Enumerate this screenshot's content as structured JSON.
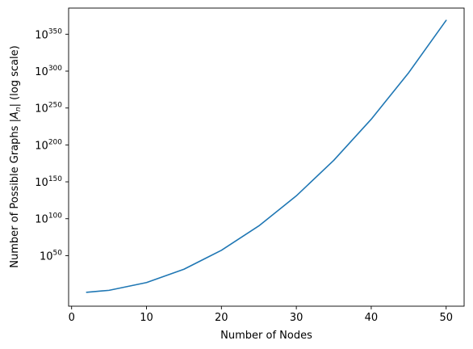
{
  "chart_data": {
    "type": "line",
    "xlabel": "Number of Nodes",
    "ylabel_prefix": "Number of Possible Graphs |",
    "ylabel_var": "A",
    "ylabel_sub": "n",
    "ylabel_suffix": "| (log scale)",
    "xlim": [
      -0.4,
      52.4
    ],
    "ylim_log10": [
      -18.5,
      385.4
    ],
    "yscale": "log",
    "x_ticks": [
      0,
      10,
      20,
      30,
      40,
      50
    ],
    "y_ticks_log10": [
      50,
      100,
      150,
      200,
      250,
      300,
      350
    ],
    "y_tick_base": "10",
    "grid": false,
    "series": [
      {
        "color": "#1f77b4",
        "x": [
          2,
          5,
          10,
          15,
          20,
          25,
          30,
          35,
          40,
          45,
          50
        ],
        "log10_y": [
          0.3,
          3.0,
          13.5,
          31.6,
          57.2,
          90.3,
          131.0,
          179.1,
          234.8,
          297.9,
          368.8
        ]
      }
    ]
  }
}
